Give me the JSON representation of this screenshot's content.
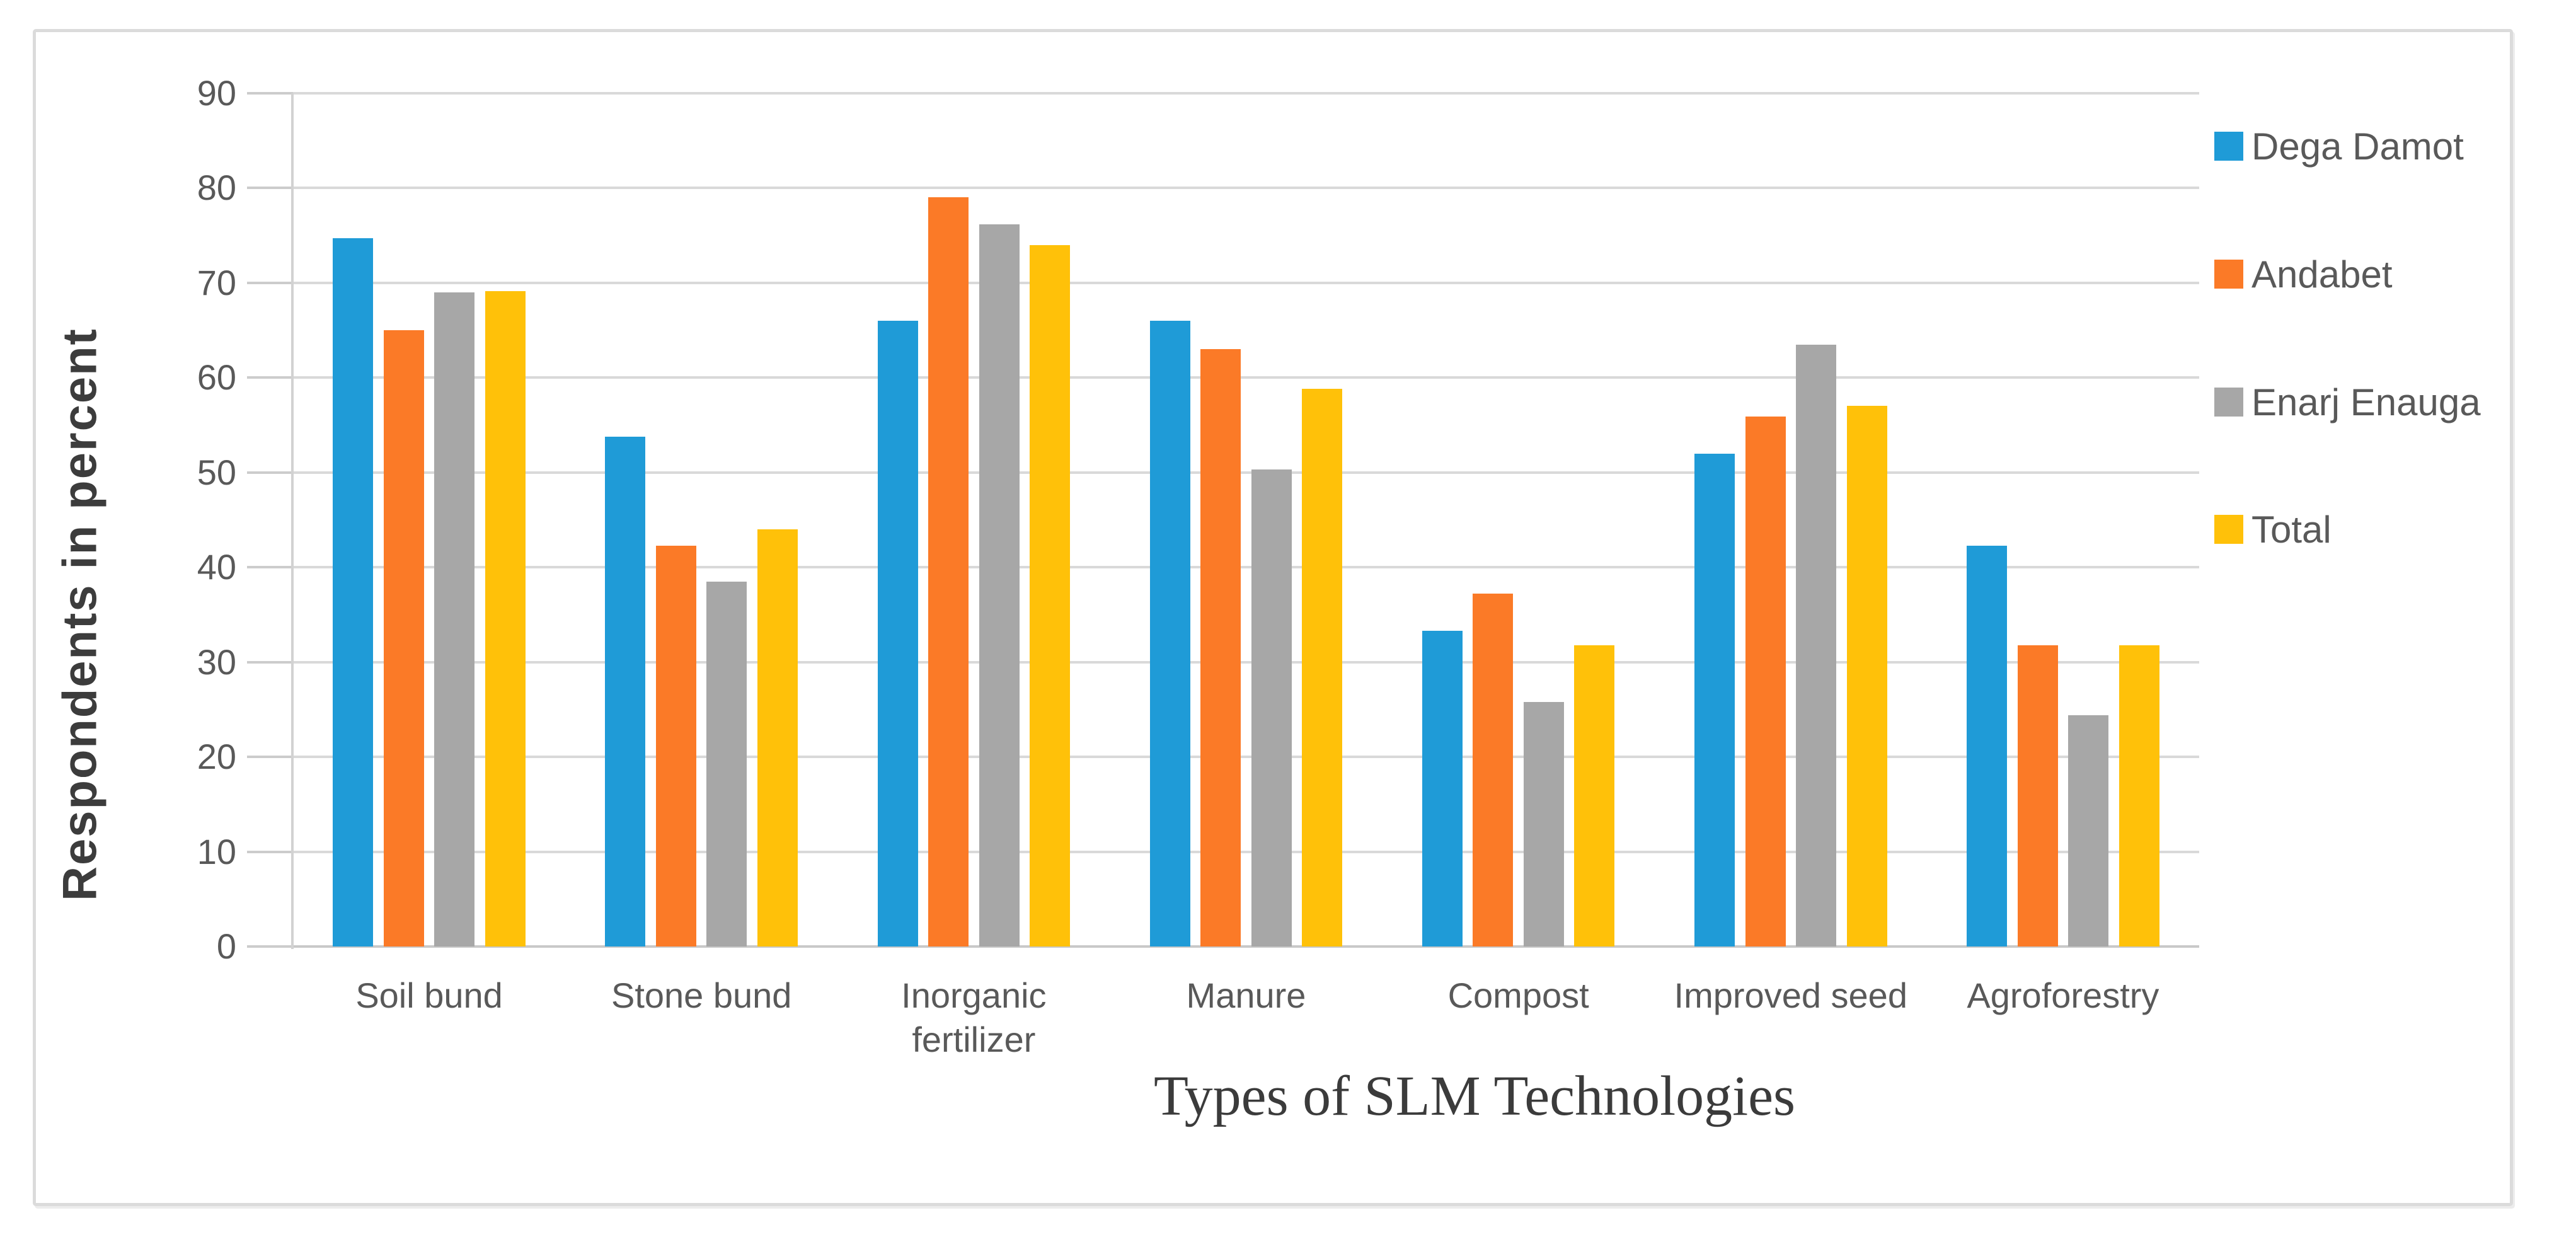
{
  "chart_data": {
    "type": "bar",
    "title": "",
    "xlabel": "Types of SLM Technologies",
    "ylabel": "Respondents in percent",
    "categories": [
      "Soil bund",
      "Stone bund",
      "Inorganic fertilizer",
      "Manure",
      "Compost",
      "Improved seed",
      "Agroforestry"
    ],
    "series": [
      {
        "name": "Dega Damot",
        "color": "#1f9bd7",
        "values": [
          74.7,
          53.8,
          66.0,
          66.0,
          33.3,
          52.0,
          42.3
        ]
      },
      {
        "name": "Andabet",
        "color": "#fb7a27",
        "values": [
          65.0,
          42.3,
          79.0,
          63.0,
          37.2,
          55.9,
          31.8
        ]
      },
      {
        "name": "Enarj Enauga",
        "color": "#a7a7a7",
        "values": [
          69.0,
          38.5,
          76.2,
          50.3,
          25.8,
          63.5,
          24.4
        ]
      },
      {
        "name": "Total",
        "color": "#ffc109",
        "values": [
          69.1,
          44.0,
          74.0,
          58.8,
          31.8,
          57.0,
          31.8
        ]
      }
    ],
    "ylim": [
      0,
      90
    ],
    "yticks": [
      0,
      10,
      20,
      30,
      40,
      50,
      60,
      70,
      80,
      90
    ],
    "grid": "horizontal-only",
    "legend_position": "right",
    "colors": {
      "gridline": "#d9d9d9",
      "axis_line": "#d2d2d2",
      "tick_label": "#595959",
      "frame_border": "#dbdbdb"
    }
  }
}
